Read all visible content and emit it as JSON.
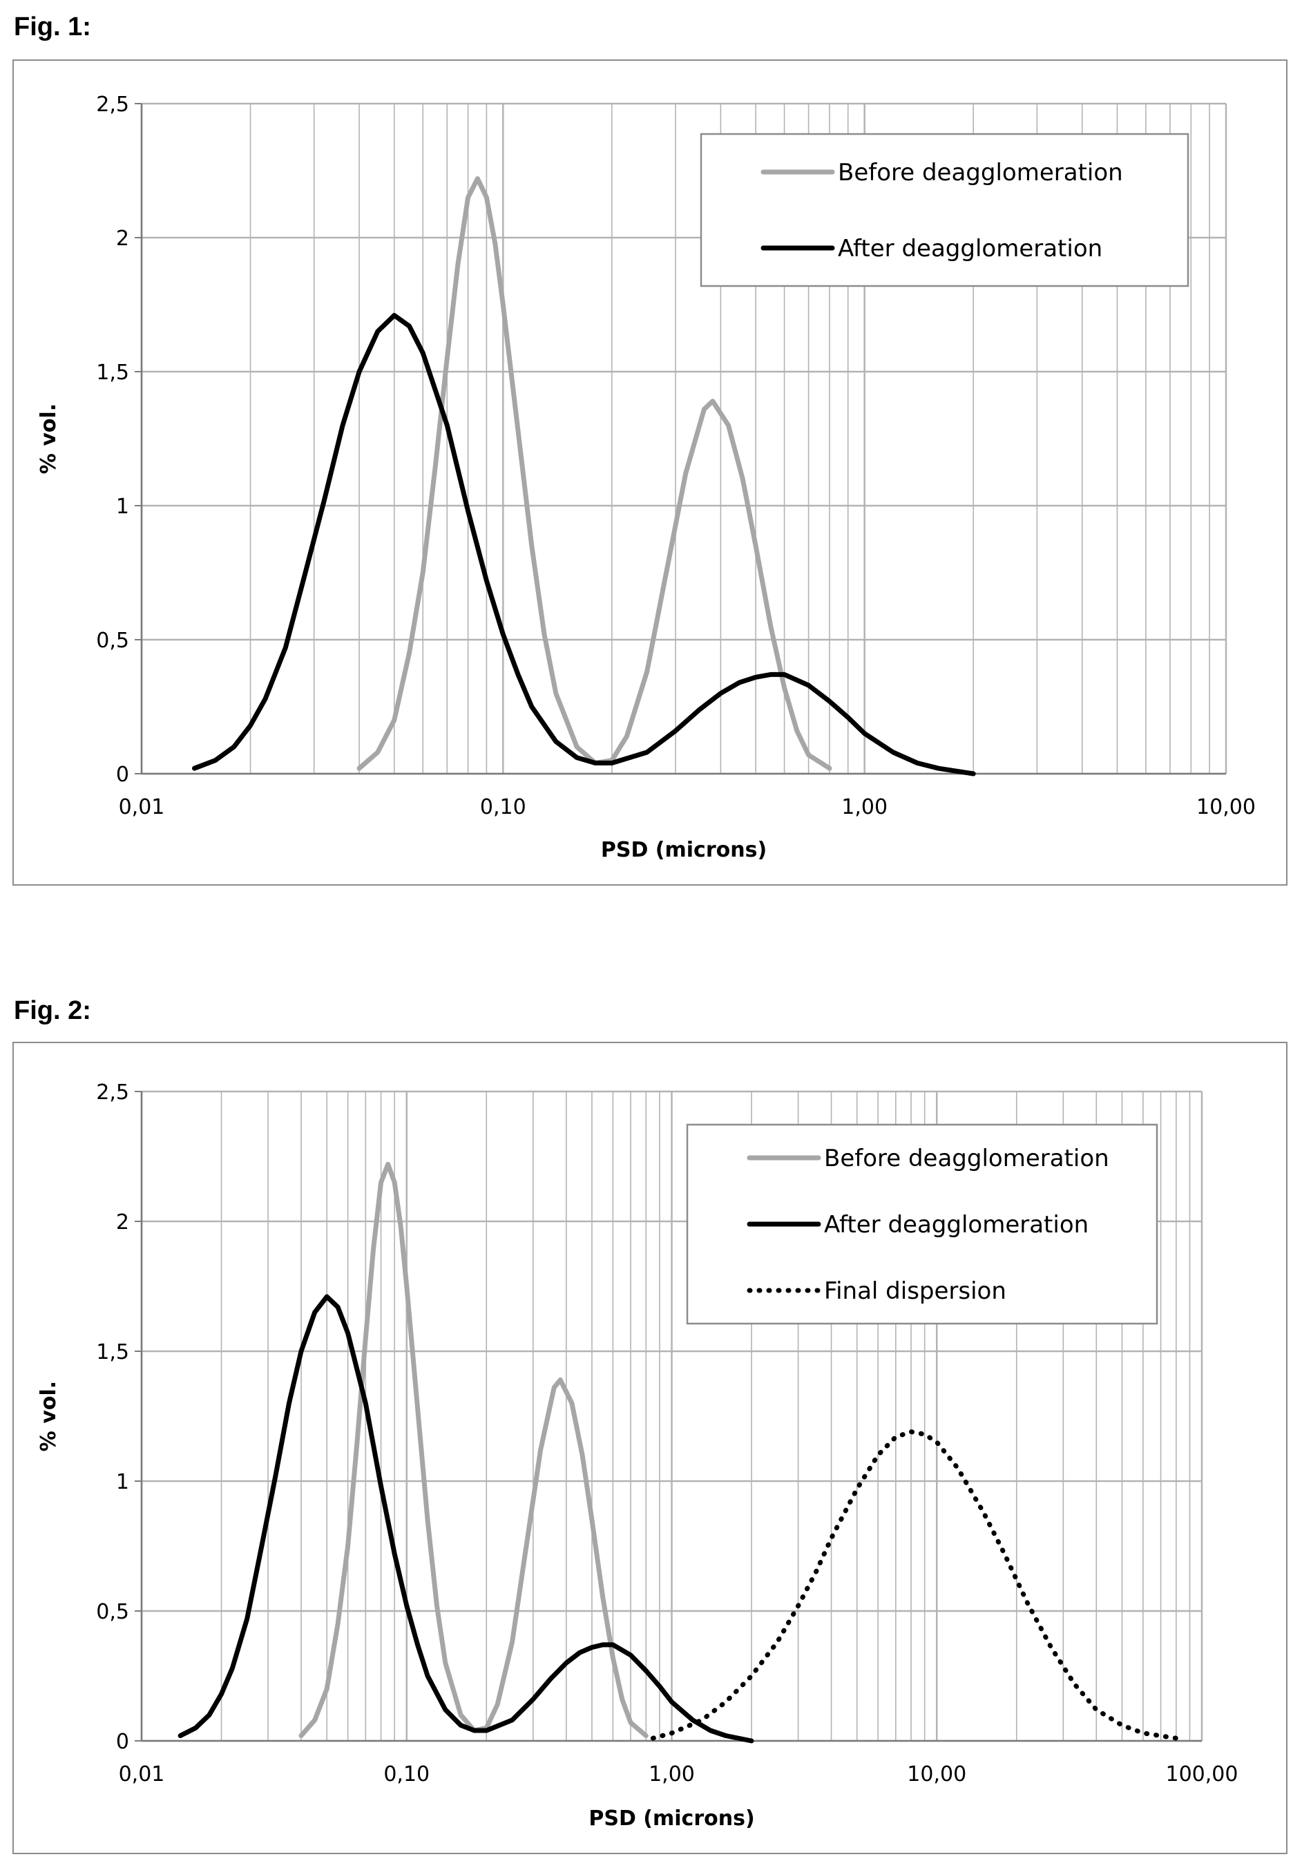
{
  "figures": [
    {
      "label": "Fig. 1:"
    },
    {
      "label": "Fig. 2:"
    }
  ],
  "colors": {
    "before": "#a6a6a6",
    "after": "#000000",
    "final": "#000000",
    "grid": "#b3b3b3",
    "frame": "#8c8c8c"
  },
  "chart_data": [
    {
      "type": "line",
      "xscale": "log",
      "xlim": [
        0.01,
        10
      ],
      "ylim": [
        0,
        2.5
      ],
      "xlabel": "PSD (microns)",
      "ylabel": "% vol.",
      "x_ticks": [
        "0,01",
        "0,10",
        "1,00",
        "10,00"
      ],
      "y_ticks": [
        "0",
        "0,5",
        "1",
        "1,5",
        "2",
        "2,5"
      ],
      "grid": true,
      "legend_position": "top-right",
      "series": [
        {
          "name": "Before deagglomeration",
          "color": "#a6a6a6",
          "style": "solid",
          "points": [
            [
              0.04,
              0.02
            ],
            [
              0.045,
              0.08
            ],
            [
              0.05,
              0.2
            ],
            [
              0.055,
              0.45
            ],
            [
              0.06,
              0.75
            ],
            [
              0.065,
              1.15
            ],
            [
              0.07,
              1.55
            ],
            [
              0.075,
              1.9
            ],
            [
              0.08,
              2.15
            ],
            [
              0.085,
              2.22
            ],
            [
              0.09,
              2.15
            ],
            [
              0.095,
              1.98
            ],
            [
              0.1,
              1.75
            ],
            [
              0.11,
              1.28
            ],
            [
              0.12,
              0.85
            ],
            [
              0.13,
              0.52
            ],
            [
              0.14,
              0.3
            ],
            [
              0.16,
              0.1
            ],
            [
              0.18,
              0.04
            ],
            [
              0.2,
              0.05
            ],
            [
              0.22,
              0.14
            ],
            [
              0.25,
              0.38
            ],
            [
              0.28,
              0.72
            ],
            [
              0.32,
              1.12
            ],
            [
              0.36,
              1.36
            ],
            [
              0.38,
              1.39
            ],
            [
              0.42,
              1.3
            ],
            [
              0.46,
              1.1
            ],
            [
              0.5,
              0.85
            ],
            [
              0.55,
              0.55
            ],
            [
              0.6,
              0.32
            ],
            [
              0.65,
              0.16
            ],
            [
              0.7,
              0.07
            ],
            [
              0.8,
              0.02
            ]
          ]
        },
        {
          "name": "After deagglomeration",
          "color": "#000000",
          "style": "solid",
          "points": [
            [
              0.014,
              0.02
            ],
            [
              0.016,
              0.05
            ],
            [
              0.018,
              0.1
            ],
            [
              0.02,
              0.18
            ],
            [
              0.022,
              0.28
            ],
            [
              0.025,
              0.47
            ],
            [
              0.028,
              0.72
            ],
            [
              0.032,
              1.02
            ],
            [
              0.036,
              1.3
            ],
            [
              0.04,
              1.5
            ],
            [
              0.045,
              1.65
            ],
            [
              0.05,
              1.71
            ],
            [
              0.055,
              1.67
            ],
            [
              0.06,
              1.57
            ],
            [
              0.07,
              1.3
            ],
            [
              0.08,
              0.98
            ],
            [
              0.09,
              0.72
            ],
            [
              0.1,
              0.52
            ],
            [
              0.11,
              0.37
            ],
            [
              0.12,
              0.25
            ],
            [
              0.14,
              0.12
            ],
            [
              0.16,
              0.06
            ],
            [
              0.18,
              0.04
            ],
            [
              0.2,
              0.04
            ],
            [
              0.25,
              0.08
            ],
            [
              0.3,
              0.16
            ],
            [
              0.35,
              0.24
            ],
            [
              0.4,
              0.3
            ],
            [
              0.45,
              0.34
            ],
            [
              0.5,
              0.36
            ],
            [
              0.55,
              0.37
            ],
            [
              0.6,
              0.37
            ],
            [
              0.7,
              0.33
            ],
            [
              0.8,
              0.27
            ],
            [
              0.9,
              0.21
            ],
            [
              1.0,
              0.15
            ],
            [
              1.2,
              0.08
            ],
            [
              1.4,
              0.04
            ],
            [
              1.6,
              0.02
            ],
            [
              2.0,
              0.0
            ]
          ]
        }
      ]
    },
    {
      "type": "line",
      "xscale": "log",
      "xlim": [
        0.01,
        100
      ],
      "ylim": [
        0,
        2.5
      ],
      "xlabel": "PSD (microns)",
      "ylabel": "% vol.",
      "x_ticks": [
        "0,01",
        "0,10",
        "1,00",
        "10,00",
        "100,00"
      ],
      "y_ticks": [
        "0",
        "0,5",
        "1",
        "1,5",
        "2",
        "2,5"
      ],
      "grid": true,
      "legend_position": "top-right",
      "series": [
        {
          "name": "Before deagglomeration",
          "color": "#a6a6a6",
          "style": "solid",
          "points": [
            [
              0.04,
              0.02
            ],
            [
              0.045,
              0.08
            ],
            [
              0.05,
              0.2
            ],
            [
              0.055,
              0.45
            ],
            [
              0.06,
              0.75
            ],
            [
              0.065,
              1.15
            ],
            [
              0.07,
              1.55
            ],
            [
              0.075,
              1.9
            ],
            [
              0.08,
              2.15
            ],
            [
              0.085,
              2.22
            ],
            [
              0.09,
              2.15
            ],
            [
              0.095,
              1.98
            ],
            [
              0.1,
              1.75
            ],
            [
              0.11,
              1.28
            ],
            [
              0.12,
              0.85
            ],
            [
              0.13,
              0.52
            ],
            [
              0.14,
              0.3
            ],
            [
              0.16,
              0.1
            ],
            [
              0.18,
              0.04
            ],
            [
              0.2,
              0.05
            ],
            [
              0.22,
              0.14
            ],
            [
              0.25,
              0.38
            ],
            [
              0.28,
              0.72
            ],
            [
              0.32,
              1.12
            ],
            [
              0.36,
              1.36
            ],
            [
              0.38,
              1.39
            ],
            [
              0.42,
              1.3
            ],
            [
              0.46,
              1.1
            ],
            [
              0.5,
              0.85
            ],
            [
              0.55,
              0.55
            ],
            [
              0.6,
              0.32
            ],
            [
              0.65,
              0.16
            ],
            [
              0.7,
              0.07
            ],
            [
              0.8,
              0.02
            ]
          ]
        },
        {
          "name": "After deagglomeration",
          "color": "#000000",
          "style": "solid",
          "points": [
            [
              0.014,
              0.02
            ],
            [
              0.016,
              0.05
            ],
            [
              0.018,
              0.1
            ],
            [
              0.02,
              0.18
            ],
            [
              0.022,
              0.28
            ],
            [
              0.025,
              0.47
            ],
            [
              0.028,
              0.72
            ],
            [
              0.032,
              1.02
            ],
            [
              0.036,
              1.3
            ],
            [
              0.04,
              1.5
            ],
            [
              0.045,
              1.65
            ],
            [
              0.05,
              1.71
            ],
            [
              0.055,
              1.67
            ],
            [
              0.06,
              1.57
            ],
            [
              0.07,
              1.3
            ],
            [
              0.08,
              0.98
            ],
            [
              0.09,
              0.72
            ],
            [
              0.1,
              0.52
            ],
            [
              0.11,
              0.37
            ],
            [
              0.12,
              0.25
            ],
            [
              0.14,
              0.12
            ],
            [
              0.16,
              0.06
            ],
            [
              0.18,
              0.04
            ],
            [
              0.2,
              0.04
            ],
            [
              0.25,
              0.08
            ],
            [
              0.3,
              0.16
            ],
            [
              0.35,
              0.24
            ],
            [
              0.4,
              0.3
            ],
            [
              0.45,
              0.34
            ],
            [
              0.5,
              0.36
            ],
            [
              0.55,
              0.37
            ],
            [
              0.6,
              0.37
            ],
            [
              0.7,
              0.33
            ],
            [
              0.8,
              0.27
            ],
            [
              0.9,
              0.21
            ],
            [
              1.0,
              0.15
            ],
            [
              1.2,
              0.08
            ],
            [
              1.4,
              0.04
            ],
            [
              1.6,
              0.02
            ],
            [
              2.0,
              0.0
            ]
          ]
        },
        {
          "name": "Final dispersion",
          "color": "#000000",
          "style": "dotted",
          "points": [
            [
              0.85,
              0.01
            ],
            [
              1.0,
              0.03
            ],
            [
              1.3,
              0.08
            ],
            [
              1.6,
              0.15
            ],
            [
              2.0,
              0.25
            ],
            [
              2.5,
              0.38
            ],
            [
              3.0,
              0.52
            ],
            [
              3.5,
              0.65
            ],
            [
              4.0,
              0.78
            ],
            [
              5.0,
              0.97
            ],
            [
              6.0,
              1.1
            ],
            [
              7.0,
              1.17
            ],
            [
              8.0,
              1.19
            ],
            [
              9.0,
              1.18
            ],
            [
              10.0,
              1.15
            ],
            [
              12.0,
              1.05
            ],
            [
              15.0,
              0.88
            ],
            [
              18.0,
              0.72
            ],
            [
              22.0,
              0.53
            ],
            [
              27.0,
              0.36
            ],
            [
              33.0,
              0.22
            ],
            [
              40.0,
              0.12
            ],
            [
              50.0,
              0.06
            ],
            [
              60.0,
              0.03
            ],
            [
              80.0,
              0.01
            ]
          ]
        }
      ]
    }
  ]
}
